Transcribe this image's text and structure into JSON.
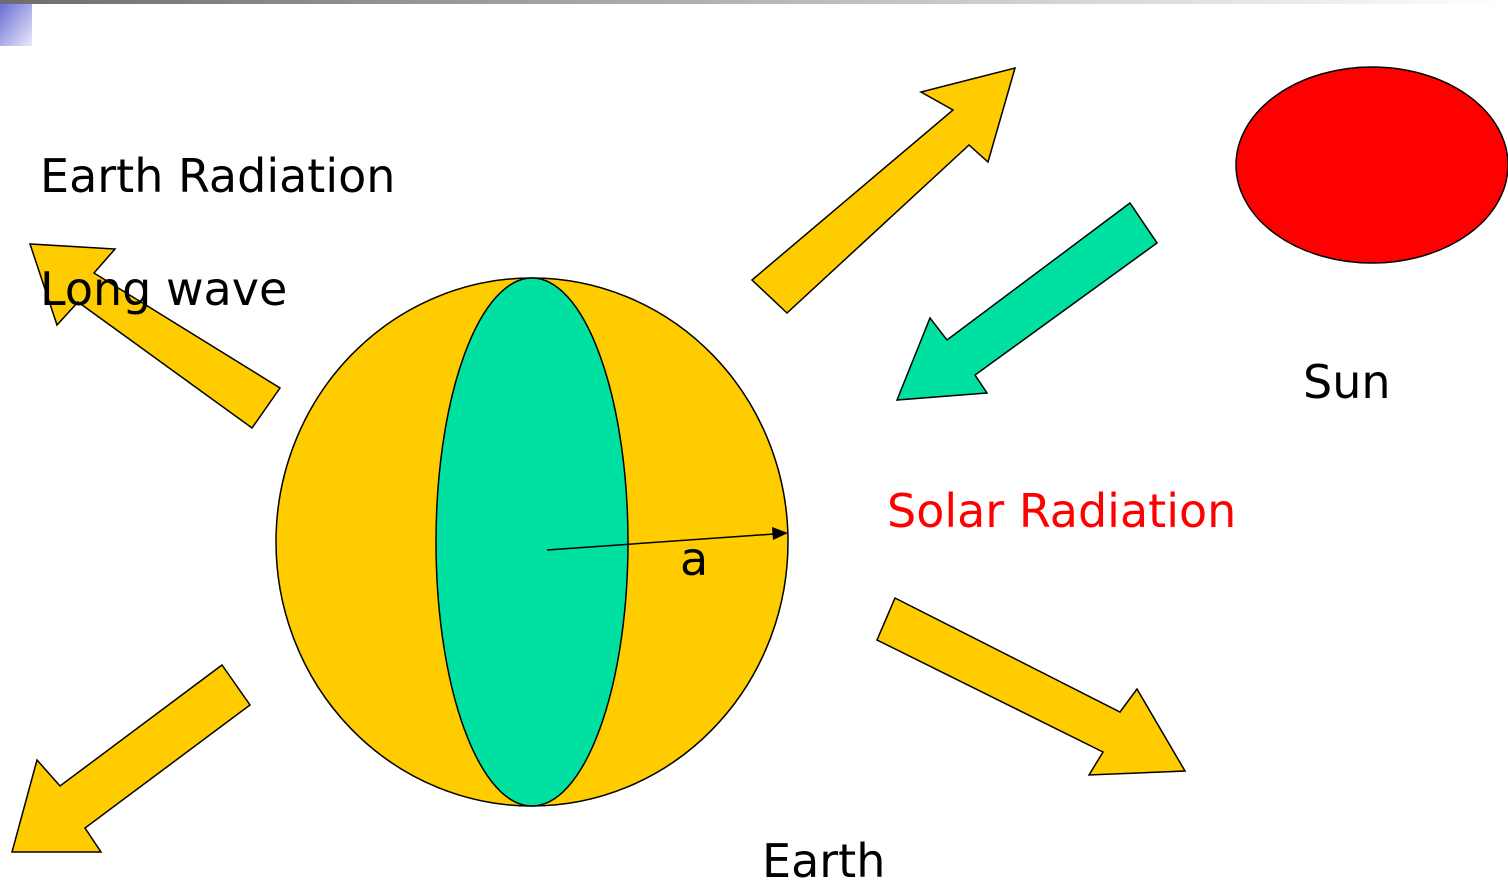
{
  "labels": {
    "earth_radiation": "Earth Radiation",
    "long_wave": "Long wave",
    "sun": "Sun",
    "solar_radiation": "Solar Radiation",
    "radius": "a",
    "earth": "Earth"
  }
}
